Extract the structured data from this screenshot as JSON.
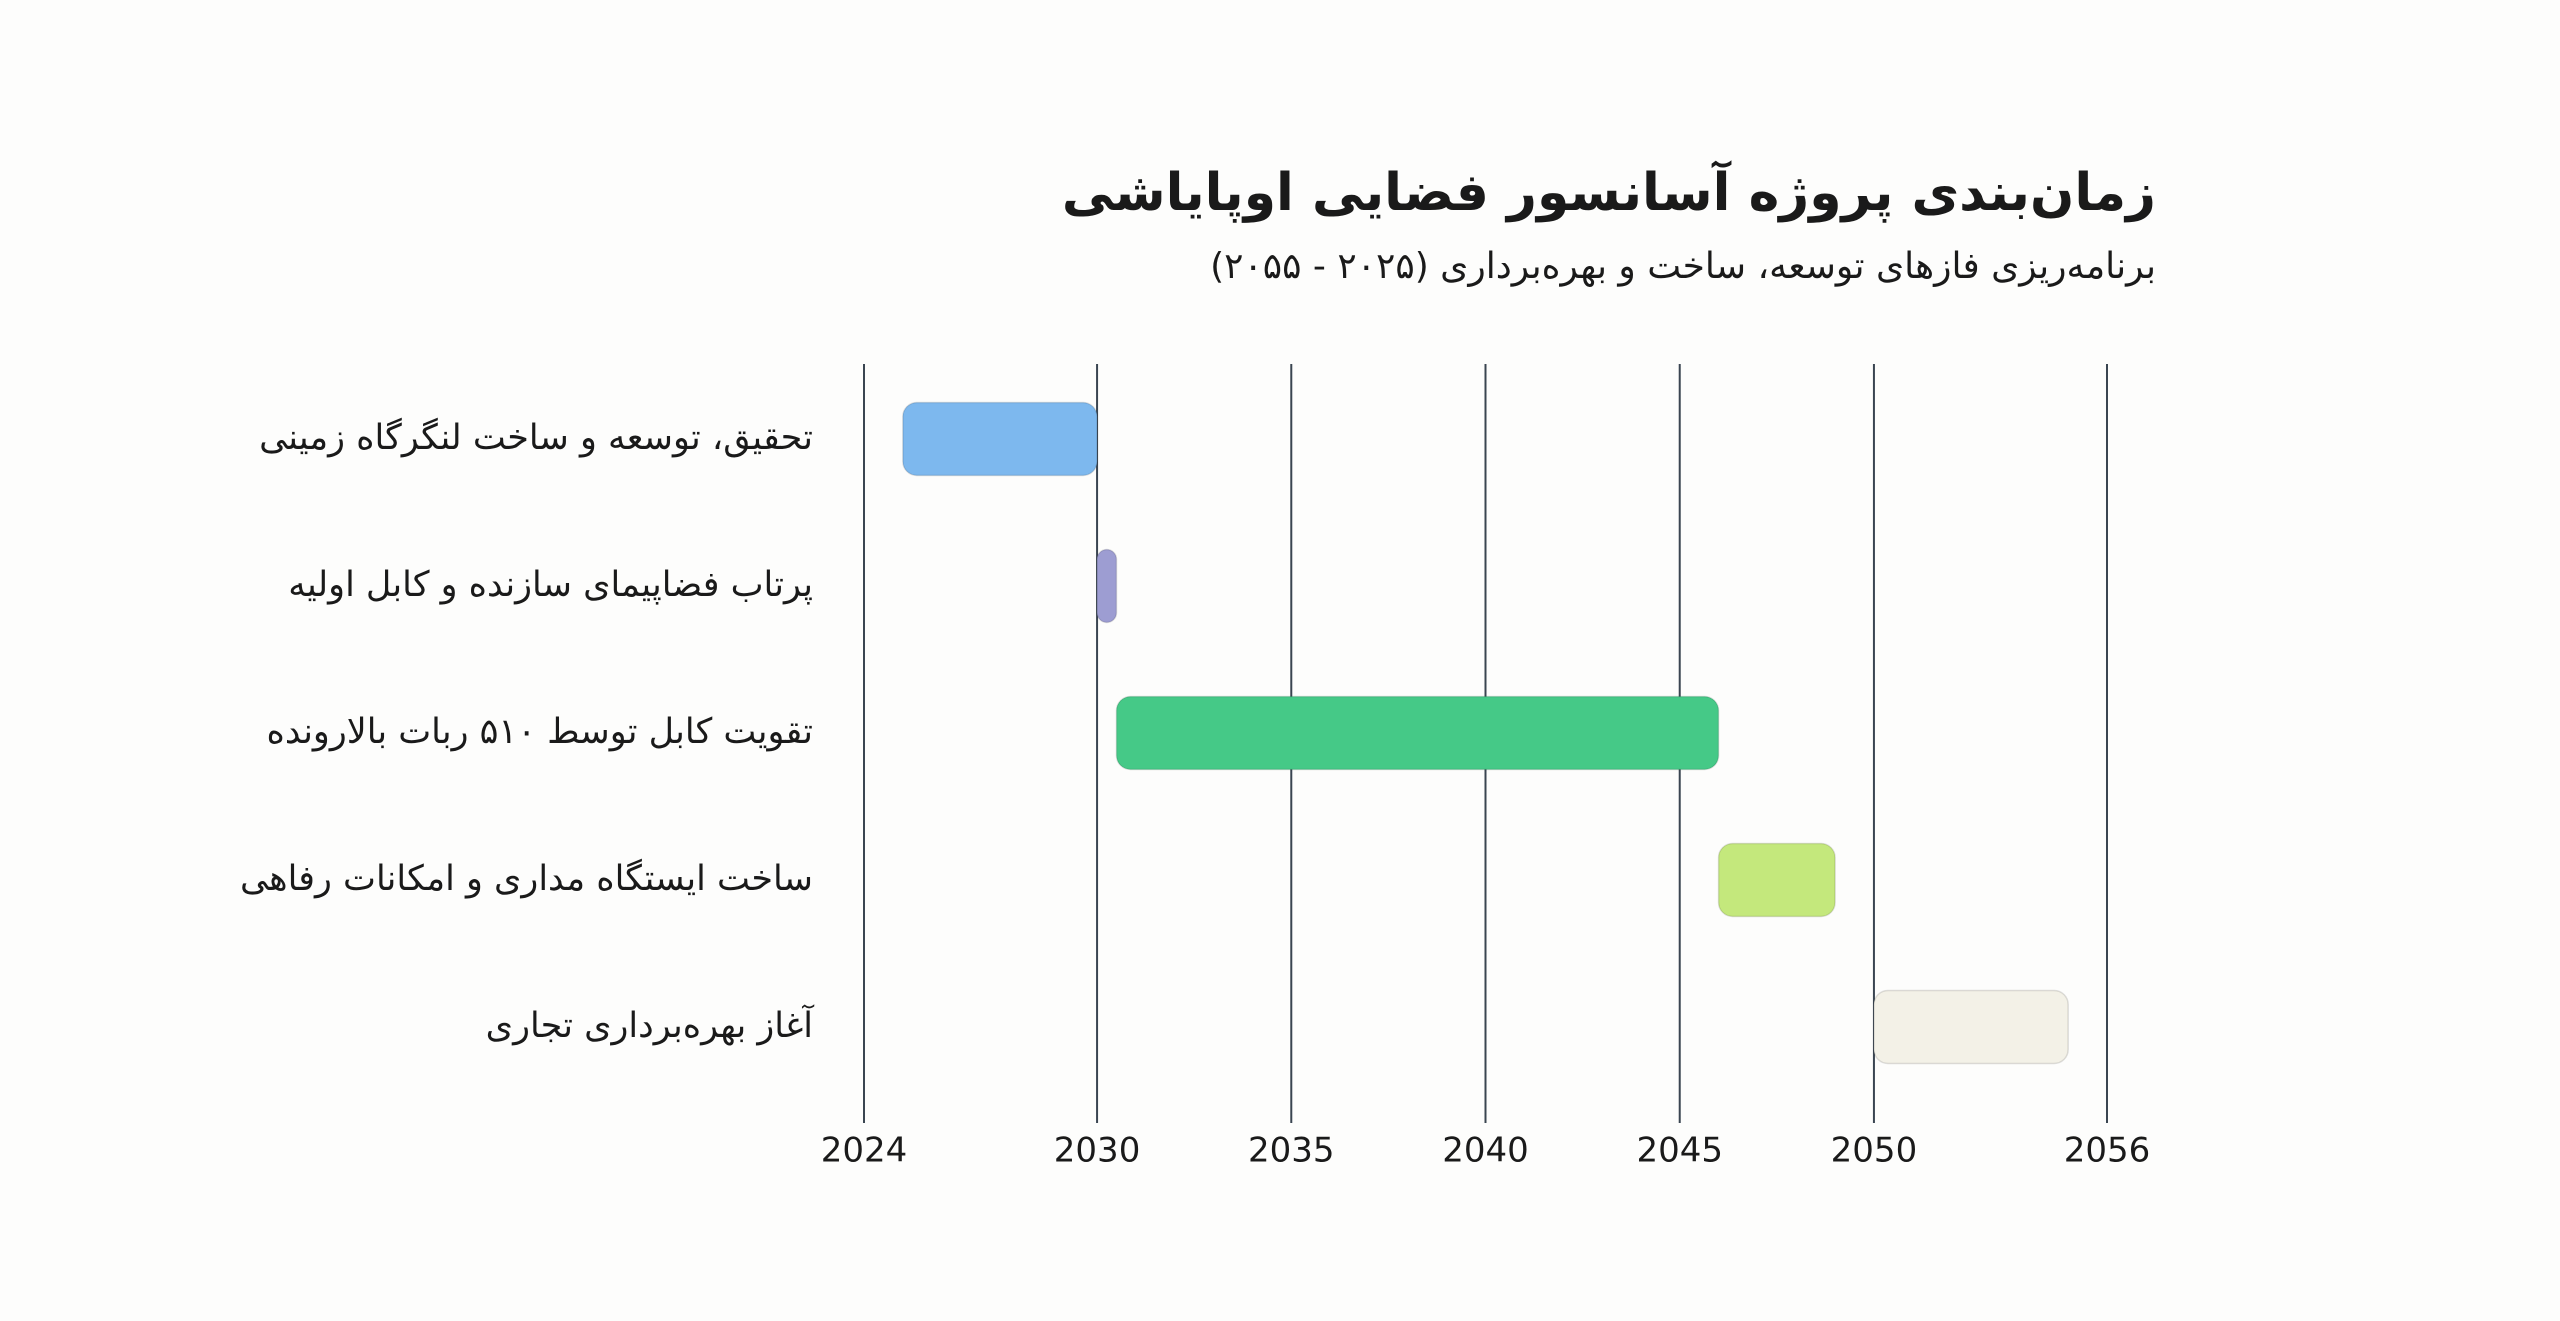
{
  "chart_data": {
    "type": "gantt",
    "title": "زمان‌بندی پروژه آسانسور فضایی اوپایاشی",
    "subtitle": "برنامه‌ریزی فازهای توسعه، ساخت و بهره‌برداری (۲۰۲۵ - ۲۰۵۵)",
    "tasks": [
      {
        "name": "تحقیق، توسعه و ساخت لنگرگاه زمینی",
        "start": 2025,
        "end": 2030,
        "color": "#7db8ee"
      },
      {
        "name": "پرتاب فضاپیمای سازنده و کابل اولیه",
        "start": 2030,
        "end": 2030.5,
        "color": "#9d9dd2"
      },
      {
        "name": "تقویت کابل توسط ۵۱۰ ربات بالارونده",
        "start": 2030.5,
        "end": 2046,
        "color": "#45c987"
      },
      {
        "name": "ساخت ایستگاه مداری و امکانات رفاهی",
        "start": 2046,
        "end": 2049,
        "color": "#c4e87c"
      },
      {
        "name": "آغاز بهره‌برداری تجاری",
        "start": 2050,
        "end": 2055,
        "color": "#f3f1e7"
      }
    ],
    "xlim": [
      2024,
      2056
    ],
    "xticks": [
      2024,
      2030,
      2035,
      2040,
      2045,
      2050,
      2056
    ],
    "grid": true
  }
}
